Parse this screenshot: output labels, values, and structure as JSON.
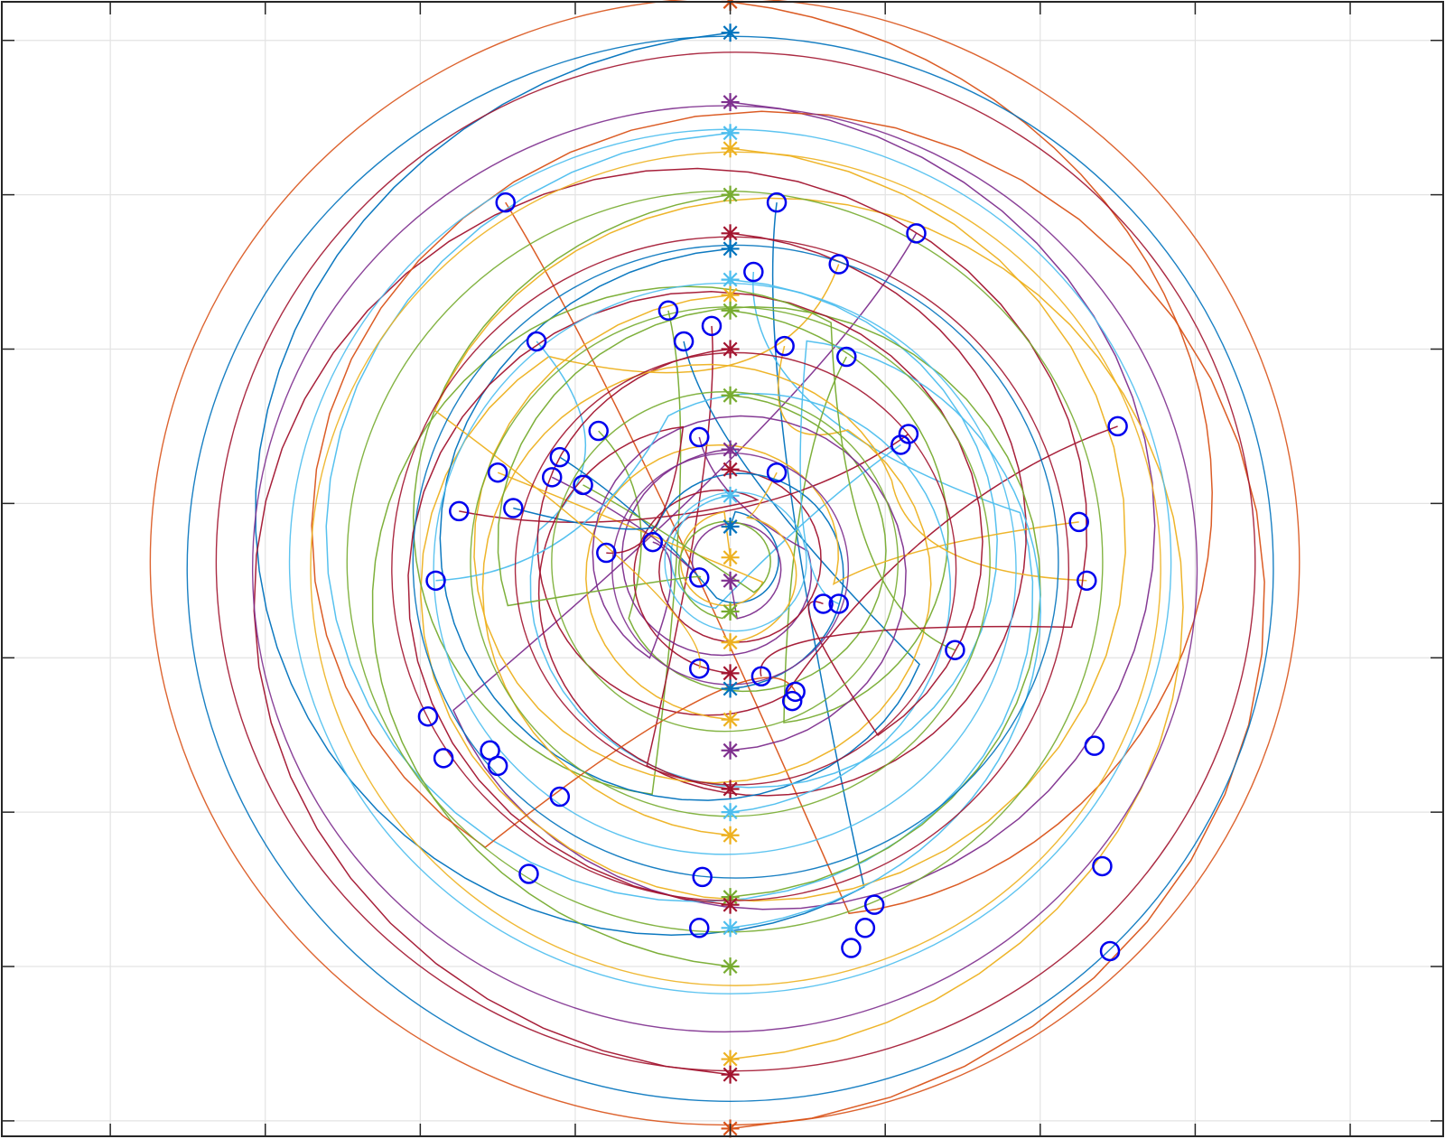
{
  "chart_data": {
    "type": "line",
    "title": "",
    "xlabel": "",
    "ylabel": "",
    "xlim": [
      -4.7,
      4.6
    ],
    "ylim": [
      -3.7,
      3.65
    ],
    "grid": true,
    "legend": "none",
    "xticks": [
      -4,
      -3,
      -2,
      -1,
      0,
      1,
      2,
      3,
      4
    ],
    "yticks": [
      -3.6,
      -2.6,
      -1.6,
      -0.6,
      0.4,
      1.4,
      2.4,
      3.4
    ],
    "palette": [
      "#0072BD",
      "#D95319",
      "#EDB120",
      "#7E2F8E",
      "#77AC30",
      "#4DBEEE",
      "#A2142F"
    ],
    "marker_colors": {
      "start": "multi",
      "end": "#0000EE"
    },
    "start_markers": [
      {
        "x": 0,
        "y": 3.65,
        "c": 1
      },
      {
        "x": 0,
        "y": 3.45,
        "c": 0
      },
      {
        "x": 0,
        "y": 3.0,
        "c": 3
      },
      {
        "x": 0,
        "y": 2.8,
        "c": 5
      },
      {
        "x": 0,
        "y": 2.7,
        "c": 2
      },
      {
        "x": 0,
        "y": 2.4,
        "c": 4
      },
      {
        "x": 0,
        "y": 2.15,
        "c": 6
      },
      {
        "x": 0,
        "y": 2.05,
        "c": 0
      },
      {
        "x": 0,
        "y": 1.85,
        "c": 5
      },
      {
        "x": 0,
        "y": 1.75,
        "c": 2
      },
      {
        "x": 0,
        "y": 1.65,
        "c": 4
      },
      {
        "x": 0,
        "y": 1.4,
        "c": 6
      },
      {
        "x": 0,
        "y": 1.1,
        "c": 4
      },
      {
        "x": 0,
        "y": 0.75,
        "c": 3
      },
      {
        "x": 0,
        "y": 0.62,
        "c": 6
      },
      {
        "x": 0,
        "y": 0.45,
        "c": 5
      },
      {
        "x": 0,
        "y": 0.25,
        "c": 0
      },
      {
        "x": 0,
        "y": 0.05,
        "c": 2
      },
      {
        "x": 0,
        "y": -0.1,
        "c": 3
      },
      {
        "x": 0,
        "y": -0.3,
        "c": 4
      },
      {
        "x": 0,
        "y": -0.5,
        "c": 2
      },
      {
        "x": 0,
        "y": -0.7,
        "c": 6
      },
      {
        "x": 0,
        "y": -0.8,
        "c": 0
      },
      {
        "x": 0,
        "y": -1.0,
        "c": 2
      },
      {
        "x": 0,
        "y": -1.2,
        "c": 3
      },
      {
        "x": 0,
        "y": -1.45,
        "c": 6
      },
      {
        "x": 0,
        "y": -1.6,
        "c": 5
      },
      {
        "x": 0,
        "y": -1.75,
        "c": 2
      },
      {
        "x": 0,
        "y": -2.15,
        "c": 4
      },
      {
        "x": 0,
        "y": -2.2,
        "c": 6
      },
      {
        "x": 0,
        "y": -2.35,
        "c": 5
      },
      {
        "x": 0,
        "y": -2.6,
        "c": 4
      },
      {
        "x": 0,
        "y": -3.2,
        "c": 2
      },
      {
        "x": 0,
        "y": -3.3,
        "c": 6
      },
      {
        "x": 0,
        "y": -3.65,
        "c": 1
      }
    ],
    "end_markers": [
      {
        "x": -1.45,
        "y": 2.35
      },
      {
        "x": 0.3,
        "y": 2.35
      },
      {
        "x": 1.2,
        "y": 2.15
      },
      {
        "x": 0.15,
        "y": 1.9
      },
      {
        "x": 0.7,
        "y": 1.95
      },
      {
        "x": -0.4,
        "y": 1.65
      },
      {
        "x": -0.12,
        "y": 1.55
      },
      {
        "x": -0.3,
        "y": 1.45
      },
      {
        "x": -1.25,
        "y": 1.45
      },
      {
        "x": 0.35,
        "y": 1.42
      },
      {
        "x": 0.75,
        "y": 1.35
      },
      {
        "x": 2.5,
        "y": 0.9
      },
      {
        "x": -0.85,
        "y": 0.87
      },
      {
        "x": -0.2,
        "y": 0.83
      },
      {
        "x": 1.15,
        "y": 0.85
      },
      {
        "x": 1.1,
        "y": 0.78
      },
      {
        "x": -1.1,
        "y": 0.7
      },
      {
        "x": -1.5,
        "y": 0.6
      },
      {
        "x": -1.15,
        "y": 0.57
      },
      {
        "x": -0.95,
        "y": 0.52
      },
      {
        "x": 0.3,
        "y": 0.6
      },
      {
        "x": -1.75,
        "y": 0.35
      },
      {
        "x": -1.4,
        "y": 0.37
      },
      {
        "x": 2.25,
        "y": 0.28
      },
      {
        "x": -0.5,
        "y": 0.15
      },
      {
        "x": -0.8,
        "y": 0.08
      },
      {
        "x": -1.9,
        "y": -0.1
      },
      {
        "x": 2.3,
        "y": -0.1
      },
      {
        "x": -0.2,
        "y": -0.08
      },
      {
        "x": 0.6,
        "y": -0.25
      },
      {
        "x": 0.7,
        "y": -0.25
      },
      {
        "x": 1.45,
        "y": -0.55
      },
      {
        "x": -0.2,
        "y": -0.67
      },
      {
        "x": 0.2,
        "y": -0.72
      },
      {
        "x": 0.42,
        "y": -0.82
      },
      {
        "x": 0.4,
        "y": -0.88
      },
      {
        "x": -1.95,
        "y": -0.98
      },
      {
        "x": 2.35,
        "y": -1.17
      },
      {
        "x": -1.85,
        "y": -1.25
      },
      {
        "x": -1.55,
        "y": -1.2
      },
      {
        "x": -1.5,
        "y": -1.3
      },
      {
        "x": -1.1,
        "y": -1.5
      },
      {
        "x": 2.4,
        "y": -1.95
      },
      {
        "x": -1.3,
        "y": -2.0
      },
      {
        "x": -0.18,
        "y": -2.02
      },
      {
        "x": 0.93,
        "y": -2.2
      },
      {
        "x": 0.87,
        "y": -2.35
      },
      {
        "x": 0.78,
        "y": -2.48
      },
      {
        "x": -0.2,
        "y": -2.35
      },
      {
        "x": 2.45,
        "y": -2.5
      }
    ]
  }
}
